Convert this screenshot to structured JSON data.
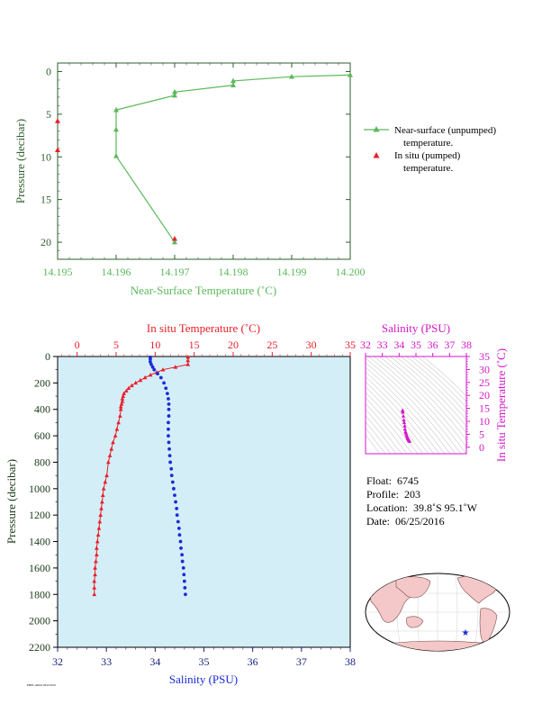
{
  "colors": {
    "green": "#5cb85c",
    "red": "#e8202a",
    "blue": "#1a2bd6",
    "magenta": "#d417c8",
    "navy": "#1a237e",
    "panel": "#d4eef8",
    "land": "#f4c8c8"
  },
  "chart_data": [
    {
      "type": "line",
      "xlabel": "Near-Surface Temperature (˚C)",
      "ylabel": "Pressure (decibar)",
      "xlim": [
        14.195,
        14.2
      ],
      "ylim": [
        22,
        -1
      ],
      "x_ticks": [
        "14.195",
        "14.196",
        "14.197",
        "14.198",
        "14.199",
        "14.200"
      ],
      "y_ticks": [
        "0",
        "5",
        "10",
        "15",
        "20"
      ],
      "grid": false,
      "legend_position": "right",
      "series": [
        {
          "name": "Near-surface (unpumped) temperature.",
          "marker": "triangle",
          "points": [
            [
              14.2,
              0.4
            ],
            [
              14.199,
              0.6
            ],
            [
              14.198,
              1.1
            ],
            [
              14.198,
              1.6
            ],
            [
              14.197,
              2.4
            ],
            [
              14.197,
              2.8
            ],
            [
              14.196,
              4.5
            ],
            [
              14.196,
              6.8
            ],
            [
              14.196,
              9.9
            ],
            [
              14.197,
              20.0
            ]
          ]
        },
        {
          "name": "In situ (pumped) temperature.",
          "marker": "triangle",
          "points": [
            [
              14.195,
              5.8
            ],
            [
              14.195,
              9.2
            ],
            [
              14.197,
              19.6
            ]
          ]
        }
      ]
    },
    {
      "type": "scatter",
      "ylabel": "Pressure (decibar)",
      "top_axis_label": "In situ Temperature (˚C)",
      "bottom_axis_label": "Salinity (PSU)",
      "temp_lim": [
        -2.5,
        35
      ],
      "sal_lim": [
        32,
        38
      ],
      "ylim": [
        2200,
        0
      ],
      "temp_ticks": [
        "0",
        "5",
        "10",
        "15",
        "20",
        "25",
        "30",
        "35"
      ],
      "sal_ticks": [
        "32",
        "33",
        "34",
        "35",
        "36",
        "37",
        "38"
      ],
      "p_ticks": [
        "0",
        "200",
        "400",
        "600",
        "800",
        "1000",
        "1200",
        "1400",
        "1600",
        "1800",
        "2000",
        "2200"
      ],
      "temperature_series": {
        "name": "In situ Temperature (˚C)",
        "points": [
          [
            14.2,
            5
          ],
          [
            14.2,
            30
          ],
          [
            14.2,
            60
          ],
          [
            12.6,
            80
          ],
          [
            11.0,
            100
          ],
          [
            10.2,
            120
          ],
          [
            9.4,
            140
          ],
          [
            8.7,
            160
          ],
          [
            8.1,
            180
          ],
          [
            7.5,
            200
          ],
          [
            7.0,
            220
          ],
          [
            6.6,
            240
          ],
          [
            6.3,
            260
          ],
          [
            6.0,
            280
          ],
          [
            5.9,
            300
          ],
          [
            5.8,
            320
          ],
          [
            5.8,
            340
          ],
          [
            5.7,
            360
          ],
          [
            5.6,
            380
          ],
          [
            5.6,
            400
          ],
          [
            5.5,
            450
          ],
          [
            5.3,
            500
          ],
          [
            5.1,
            550
          ],
          [
            4.9,
            600
          ],
          [
            4.6,
            650
          ],
          [
            4.4,
            700
          ],
          [
            4.2,
            750
          ],
          [
            4.0,
            800
          ],
          [
            3.8,
            900
          ],
          [
            3.6,
            950
          ],
          [
            3.4,
            1000
          ],
          [
            3.3,
            1050
          ],
          [
            3.2,
            1100
          ],
          [
            3.1,
            1150
          ],
          [
            3.0,
            1200
          ],
          [
            2.9,
            1250
          ],
          [
            2.8,
            1300
          ],
          [
            2.7,
            1350
          ],
          [
            2.6,
            1400
          ],
          [
            2.5,
            1450
          ],
          [
            2.5,
            1500
          ],
          [
            2.4,
            1550
          ],
          [
            2.3,
            1600
          ],
          [
            2.3,
            1650
          ],
          [
            2.2,
            1700
          ],
          [
            2.2,
            1750
          ],
          [
            2.2,
            1800
          ]
        ]
      },
      "salinity_series": {
        "name": "Salinity (PSU)",
        "points": [
          [
            33.9,
            5
          ],
          [
            33.9,
            20
          ],
          [
            33.9,
            40
          ],
          [
            33.92,
            60
          ],
          [
            33.95,
            80
          ],
          [
            33.98,
            100
          ],
          [
            34.05,
            130
          ],
          [
            34.12,
            160
          ],
          [
            34.18,
            200
          ],
          [
            34.22,
            240
          ],
          [
            34.25,
            280
          ],
          [
            34.27,
            320
          ],
          [
            34.28,
            360
          ],
          [
            34.28,
            400
          ],
          [
            34.28,
            450
          ],
          [
            34.27,
            500
          ],
          [
            34.27,
            550
          ],
          [
            34.27,
            600
          ],
          [
            34.28,
            650
          ],
          [
            34.29,
            700
          ],
          [
            34.3,
            750
          ],
          [
            34.31,
            800
          ],
          [
            34.33,
            850
          ],
          [
            34.34,
            900
          ],
          [
            34.36,
            950
          ],
          [
            34.38,
            1000
          ],
          [
            34.4,
            1050
          ],
          [
            34.42,
            1100
          ],
          [
            34.44,
            1150
          ],
          [
            34.45,
            1200
          ],
          [
            34.47,
            1250
          ],
          [
            34.49,
            1300
          ],
          [
            34.5,
            1350
          ],
          [
            34.52,
            1400
          ],
          [
            34.53,
            1450
          ],
          [
            34.55,
            1500
          ],
          [
            34.56,
            1550
          ],
          [
            34.58,
            1600
          ],
          [
            34.59,
            1650
          ],
          [
            34.6,
            1700
          ],
          [
            34.61,
            1750
          ],
          [
            34.62,
            1800
          ]
        ]
      }
    },
    {
      "type": "scatter",
      "title": "Salinity (PSU)",
      "ylabel": "In situ Temperature (˚C)",
      "xlim": [
        32,
        38
      ],
      "ylim": [
        -2.5,
        35
      ],
      "x_ticks": [
        "32",
        "33",
        "34",
        "35",
        "36",
        "37",
        "38"
      ],
      "y_ticks": [
        "0",
        "5",
        "10",
        "15",
        "20",
        "25",
        "30",
        "35"
      ],
      "points": [
        [
          34.2,
          14.2
        ],
        [
          34.22,
          13.5
        ],
        [
          34.25,
          12.0
        ],
        [
          34.28,
          10.5
        ],
        [
          34.3,
          9.5
        ],
        [
          34.33,
          8.2
        ],
        [
          34.35,
          7.0
        ],
        [
          34.38,
          6.0
        ],
        [
          34.4,
          5.5
        ],
        [
          34.43,
          4.8
        ],
        [
          34.47,
          4.2
        ],
        [
          34.5,
          3.7
        ],
        [
          34.52,
          3.3
        ],
        [
          34.55,
          3.0
        ],
        [
          34.58,
          2.7
        ],
        [
          34.6,
          2.5
        ],
        [
          34.62,
          2.3
        ]
      ]
    }
  ],
  "info": {
    "float_label": "Float:",
    "float_value": "6745",
    "profile_label": "Profile:",
    "profile_value": "203",
    "location_label": "Location:",
    "location_value": "39.8˚S  95.1˚W",
    "date_label": "Date:",
    "date_value": "06/25/2016"
  },
  "map": {
    "marker_icon": "star-icon"
  },
  "footer": {
    "small_text": "PMEL/ARGO 06/25/2016"
  }
}
